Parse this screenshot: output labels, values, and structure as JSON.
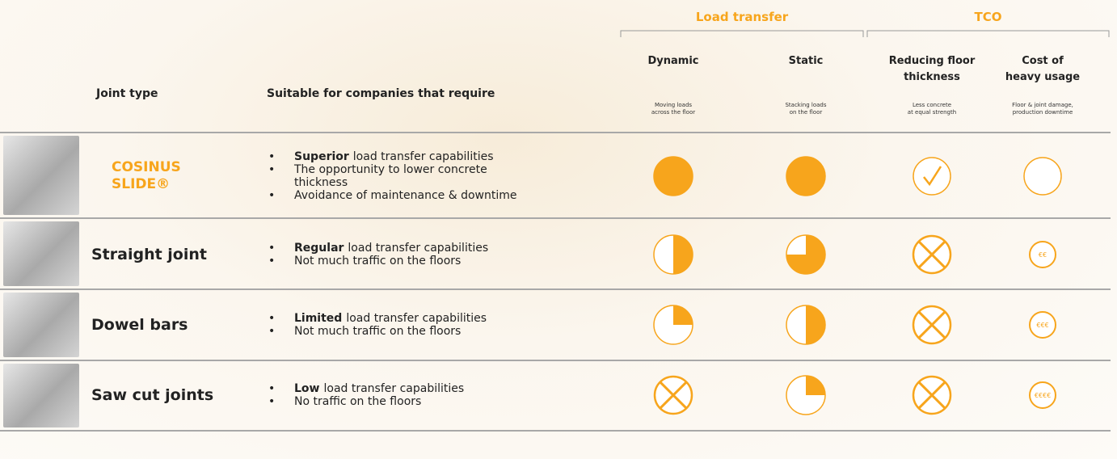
{
  "header": {
    "groups": [
      {
        "label": "Load transfer"
      },
      {
        "label": "TCO"
      }
    ],
    "joint_type": "Joint type",
    "suitable": "Suitable for companies that require",
    "columns": [
      {
        "title": "Dynamic",
        "subtitle": "Moving loads\nacross the floor"
      },
      {
        "title": "Static",
        "subtitle": "Stacking loads\non the floor"
      },
      {
        "title": "Reducing floor\nthickness",
        "subtitle": "Less concrete\nat equal strength"
      },
      {
        "title": "Cost of\nheavy usage",
        "subtitle": "Floor & joint damage,\nproduction downtime"
      }
    ]
  },
  "rows": [
    {
      "name": "COSINUS\nSLIDE®",
      "highlight": true,
      "bullets": [
        {
          "bold": "Superior",
          "text": "load transfer capabilities"
        },
        {
          "text": "The opportunity to lower concrete thickness"
        },
        {
          "text": "Avoidance of maintenance & downtime"
        }
      ],
      "cells": [
        {
          "kind": "harvey",
          "fill": 1
        },
        {
          "kind": "harvey",
          "fill": 1
        },
        {
          "kind": "check"
        },
        {
          "kind": "empty"
        }
      ]
    },
    {
      "name": "Straight joint",
      "highlight": false,
      "bullets": [
        {
          "bold": "Regular",
          "text": "load transfer capabilities"
        },
        {
          "text": "Not much traffic on the floors"
        }
      ],
      "cells": [
        {
          "kind": "harvey",
          "fill": 0.5
        },
        {
          "kind": "harvey",
          "fill": 0.75
        },
        {
          "kind": "cross"
        },
        {
          "kind": "cost",
          "label": "€€"
        }
      ]
    },
    {
      "name": "Dowel bars",
      "highlight": false,
      "bullets": [
        {
          "bold": "Limited",
          "text": "load transfer capabilities"
        },
        {
          "text": "Not much traffic on the floors"
        }
      ],
      "cells": [
        {
          "kind": "harvey",
          "fill": 0.25
        },
        {
          "kind": "harvey",
          "fill": 0.5
        },
        {
          "kind": "cross"
        },
        {
          "kind": "cost",
          "label": "€€€"
        }
      ]
    },
    {
      "name": "Saw cut joints",
      "highlight": false,
      "bullets": [
        {
          "bold": "Low",
          "text": "load transfer capabilities"
        },
        {
          "text": "No traffic on the floors"
        }
      ],
      "cells": [
        {
          "kind": "cross"
        },
        {
          "kind": "harvey",
          "fill": 0.25
        },
        {
          "kind": "cross"
        },
        {
          "kind": "cost",
          "label": "€€€€"
        }
      ]
    }
  ]
}
